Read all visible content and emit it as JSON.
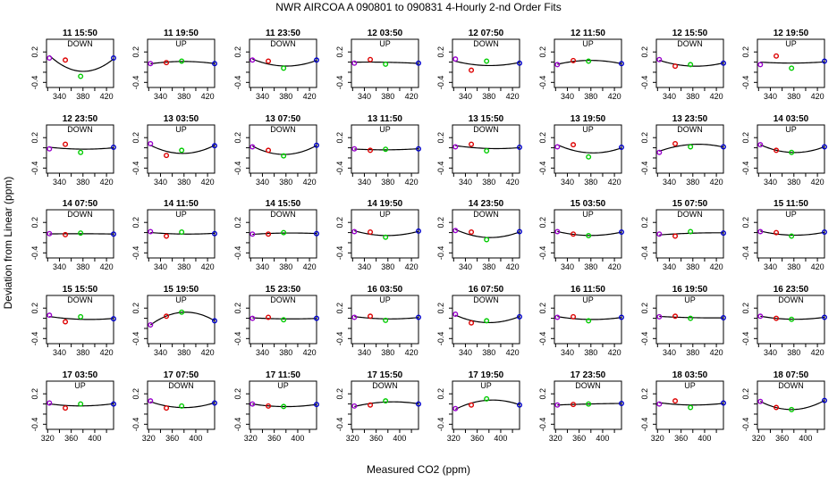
{
  "chart_data": {
    "type": "scatter",
    "title": "NWR   AIRCOA A    090801 to 090831   4-Hourly 2-nd Order Fits",
    "xlabel": "Measured CO2 (ppm)",
    "ylabel": "Deviation from Linear (ppm)",
    "xlim": [
      318,
      432
    ],
    "ylim": [
      -0.5,
      0.45
    ],
    "xticks": [
      320,
      360,
      400
    ],
    "xticks_minor": [
      340,
      380,
      420
    ],
    "yticks": [
      -0.4,
      0.2
    ],
    "yticks_minor": [
      -0.2,
      0.0
    ],
    "x_standards": [
      323,
      350,
      376,
      432
    ],
    "point_colors": [
      "#9900cc",
      "#dd0000",
      "#00cc00",
      "#0000cc"
    ],
    "curve_color": "#000000",
    "panels": [
      {
        "label": "11 15:50",
        "dir": "DOWN",
        "y": [
          0.08,
          0.04,
          -0.28,
          0.08
        ]
      },
      {
        "label": "11 19:50",
        "dir": "UP",
        "y": [
          -0.03,
          -0.01,
          0.02,
          -0.03
        ]
      },
      {
        "label": "11 23:50",
        "dir": "DOWN",
        "y": [
          0.04,
          0.02,
          -0.12,
          0.04
        ]
      },
      {
        "label": "12 03:50",
        "dir": "UP",
        "y": [
          -0.02,
          0.05,
          -0.04,
          -0.02
        ]
      },
      {
        "label": "12 07:50",
        "dir": "DOWN",
        "y": [
          0.06,
          -0.16,
          0.02,
          -0.02
        ]
      },
      {
        "label": "12 11:50",
        "dir": "UP",
        "y": [
          -0.05,
          0.03,
          0.02,
          -0.03
        ]
      },
      {
        "label": "12 15:50",
        "dir": "DOWN",
        "y": [
          0.05,
          -0.08,
          -0.05,
          -0.02
        ]
      },
      {
        "label": "12 19:50",
        "dir": "UP",
        "y": [
          -0.05,
          0.12,
          -0.12,
          0.02
        ]
      },
      {
        "label": "12 23:50",
        "dir": "DOWN",
        "y": [
          -0.02,
          0.07,
          -0.09,
          0.01
        ]
      },
      {
        "label": "13 03:50",
        "dir": "UP",
        "y": [
          0.08,
          -0.15,
          -0.05,
          0.04
        ]
      },
      {
        "label": "13 07:50",
        "dir": "DOWN",
        "y": [
          0.02,
          -0.05,
          -0.16,
          0.05
        ]
      },
      {
        "label": "13 11:50",
        "dir": "UP",
        "y": [
          -0.02,
          -0.05,
          -0.03,
          -0.02
        ]
      },
      {
        "label": "13 15:50",
        "dir": "DOWN",
        "y": [
          0.02,
          0.07,
          -0.06,
          0.01
        ]
      },
      {
        "label": "13 19:50",
        "dir": "UP",
        "y": [
          0.02,
          0.06,
          -0.18,
          0.01
        ]
      },
      {
        "label": "13 23:50",
        "dir": "DOWN",
        "y": [
          -0.09,
          0.08,
          0.02,
          0.02
        ]
      },
      {
        "label": "14 03:50",
        "dir": "UP",
        "y": [
          0.06,
          -0.05,
          -0.09,
          0.02
        ]
      },
      {
        "label": "14 07:50",
        "dir": "DOWN",
        "y": [
          -0.02,
          -0.04,
          -0.01,
          -0.03
        ]
      },
      {
        "label": "14 11:50",
        "dir": "UP",
        "y": [
          0.02,
          -0.07,
          0.01,
          -0.02
        ]
      },
      {
        "label": "14 15:50",
        "dir": "DOWN",
        "y": [
          -0.03,
          -0.03,
          0.0,
          -0.02
        ]
      },
      {
        "label": "14 19:50",
        "dir": "UP",
        "y": [
          0.02,
          0.01,
          -0.09,
          0.03
        ]
      },
      {
        "label": "14 23:50",
        "dir": "DOWN",
        "y": [
          0.04,
          0.01,
          -0.14,
          0.02
        ]
      },
      {
        "label": "15 03:50",
        "dir": "UP",
        "y": [
          0.02,
          -0.03,
          -0.06,
          0.01
        ]
      },
      {
        "label": "15 07:50",
        "dir": "DOWN",
        "y": [
          -0.03,
          -0.07,
          0.02,
          -0.01
        ]
      },
      {
        "label": "15 11:50",
        "dir": "UP",
        "y": [
          0.02,
          0.0,
          -0.07,
          0.01
        ]
      },
      {
        "label": "15 15:50",
        "dir": "DOWN",
        "y": [
          0.06,
          -0.07,
          0.03,
          -0.01
        ]
      },
      {
        "label": "15 19:50",
        "dir": "UP",
        "y": [
          -0.13,
          0.04,
          0.12,
          -0.05
        ]
      },
      {
        "label": "15 23:50",
        "dir": "DOWN",
        "y": [
          0.0,
          0.02,
          -0.03,
          0.0
        ]
      },
      {
        "label": "16 03:50",
        "dir": "UP",
        "y": [
          0.02,
          0.04,
          -0.04,
          0.02
        ]
      },
      {
        "label": "16 07:50",
        "dir": "DOWN",
        "y": [
          0.08,
          -0.09,
          -0.05,
          0.03
        ]
      },
      {
        "label": "16 11:50",
        "dir": "UP",
        "y": [
          0.02,
          0.03,
          -0.05,
          0.02
        ]
      },
      {
        "label": "16 19:50",
        "dir": "UP",
        "y": [
          0.03,
          0.04,
          0.0,
          0.01
        ]
      },
      {
        "label": "16 23:50",
        "dir": "DOWN",
        "y": [
          0.04,
          0.0,
          -0.02,
          0.02
        ]
      },
      {
        "label": "17 03:50",
        "dir": "UP",
        "y": [
          0.02,
          -0.08,
          0.0,
          0.0
        ]
      },
      {
        "label": "17 07:50",
        "dir": "DOWN",
        "y": [
          0.06,
          -0.08,
          -0.04,
          0.02
        ]
      },
      {
        "label": "17 11:50",
        "dir": "UP",
        "y": [
          0.0,
          -0.04,
          -0.05,
          -0.01
        ]
      },
      {
        "label": "17 15:50",
        "dir": "DOWN",
        "y": [
          -0.04,
          -0.02,
          0.06,
          0.0
        ]
      },
      {
        "label": "17 19:50",
        "dir": "UP",
        "y": [
          -0.09,
          -0.02,
          0.1,
          -0.02
        ]
      },
      {
        "label": "17 23:50",
        "dir": "DOWN",
        "y": [
          -0.02,
          -0.01,
          0.0,
          0.01
        ]
      },
      {
        "label": "18 03:50",
        "dir": "UP",
        "y": [
          0.0,
          0.06,
          -0.07,
          0.02
        ]
      },
      {
        "label": "18 07:50",
        "dir": "DOWN",
        "y": [
          0.05,
          -0.07,
          -0.11,
          0.07
        ]
      }
    ]
  }
}
